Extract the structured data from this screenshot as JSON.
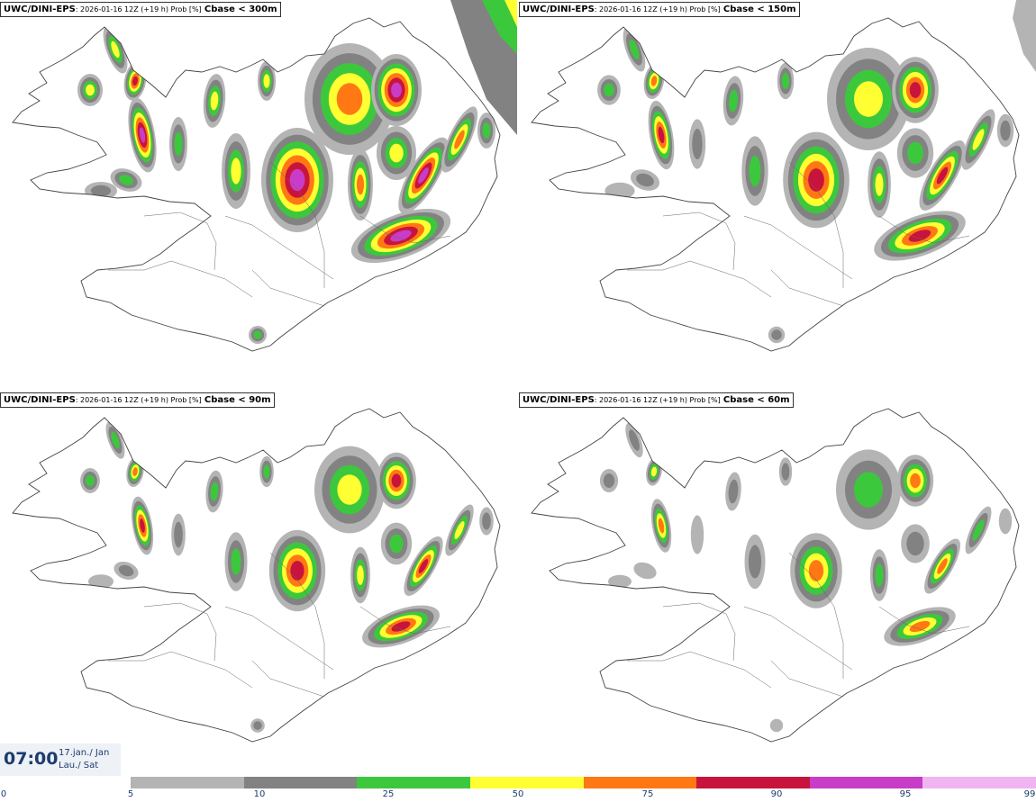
{
  "panels": [
    {
      "model": "UWC/DINI-EPS",
      "run": ": 2026-01-16 12Z (+19 h) Prob [%]",
      "variable": "Cbase < 300m"
    },
    {
      "model": "UWC/DINI-EPS",
      "run": ": 2026-01-16 12Z (+19 h) Prob [%]",
      "variable": "Cbase < 150m"
    },
    {
      "model": "UWC/DINI-EPS",
      "run": ": 2026-01-16 12Z (+19 h) Prob [%]",
      "variable": "Cbase < 90m"
    },
    {
      "model": "UWC/DINI-EPS",
      "run": ": 2026-01-16 12Z (+19 h) Prob [%]",
      "variable": "Cbase < 60m"
    }
  ],
  "valid_time": {
    "time": "07:00",
    "date_line1": "17.jan./ Jan",
    "date_line2": "Lau./ Sat"
  },
  "legend": {
    "ticks": [
      "0",
      "5",
      "10",
      "25",
      "50",
      "75",
      "90",
      "95",
      "99"
    ],
    "colors": [
      "#b4b4b4",
      "#828282",
      "#3cc83c",
      "#ffff32",
      "#ff7814",
      "#c8143c",
      "#c83cc8",
      "#f0b4f0"
    ]
  },
  "palette": {
    "coast": "#444444",
    "lowest": "#b4b4b4",
    "low": "#828282",
    "green": "#3cc83c",
    "yellow": "#ffff32",
    "orange": "#ff7814",
    "red": "#c8143c",
    "magenta": "#c83cc8",
    "pink": "#f0b4f0"
  }
}
